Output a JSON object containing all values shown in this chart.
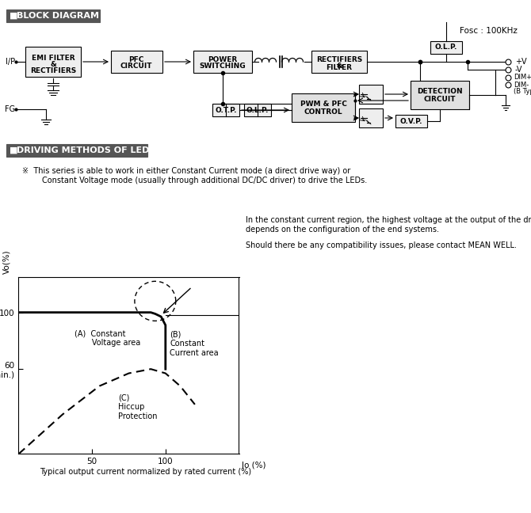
{
  "section1_title": "BLOCK DIAGRAM",
  "fosc_text": "Fosc : 100KHz",
  "section2_title": "DRIVING METHODS OF LED MODULE",
  "note_line1": "※  This series is able to work in either Constant Current mode (a direct drive way) or",
  "note_line2": "        Constant Voltage mode (usually through additional DC/DC driver) to drive the LEDs.",
  "right_text1": "In the constant current region, the highest voltage at the output of the driver",
  "right_text2": "depends on the configuration of the end systems.",
  "right_text3": "Should there be any compatibility issues, please contact MEAN WELL.",
  "caption": "Typical output current normalized by rated current (%)",
  "bg_color": "#ffffff",
  "title_bg": "#555555",
  "box_fill": "#eeeeee",
  "box_edge": "#000000"
}
